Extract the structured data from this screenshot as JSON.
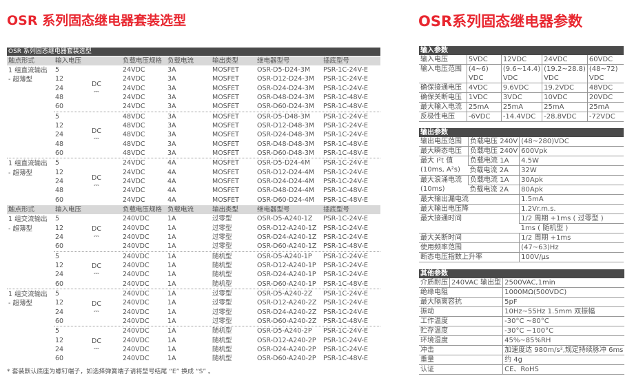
{
  "left": {
    "title": "OSR 系列固态继电器套装选型",
    "table_title": "OSR 系列固态继电器套装选型",
    "headers": [
      "触点形式",
      "输入电压",
      "负载电压规格",
      "负载电流",
      "输出类型",
      "继电器型号",
      "插底型号"
    ],
    "dc_label": "DC",
    "dc_symbol": "⎓",
    "sections": [
      {
        "groups": [
          {
            "label": [
              "1 组直流输出",
              "- 超薄型"
            ],
            "blocks": [
              [
                [
                  "5",
                  "24VDC",
                  "3A",
                  "MOSFET",
                  "OSR-D5-D24-3M",
                  "PSR-1C-24V-E"
                ],
                [
                  "12",
                  "24VDC",
                  "3A",
                  "MOSFET",
                  "OSR-D12-D24-3M",
                  "PSR-1C-24V-E"
                ],
                [
                  "24",
                  "24VDC",
                  "3A",
                  "MOSFET",
                  "OSR-D24-D24-3M",
                  "PSR-1C-24V-E"
                ],
                [
                  "48",
                  "24VDC",
                  "3A",
                  "MOSFET",
                  "OSR-D48-D24-3M",
                  "PSR-1C-48V-E"
                ],
                [
                  "60",
                  "24VDC",
                  "3A",
                  "MOSFET",
                  "OSR-D60-D24-3M",
                  "PSR-1C-48V-E"
                ]
              ],
              [
                [
                  "5",
                  "48VDC",
                  "3A",
                  "MOSFET",
                  "OSR-D5-D48-3M",
                  "PSR-1C-24V-E"
                ],
                [
                  "12",
                  "48VDC",
                  "3A",
                  "MOSFET",
                  "OSR-D12-D48-3M",
                  "PSR-1C-24V-E"
                ],
                [
                  "24",
                  "48VDC",
                  "3A",
                  "MOSFET",
                  "OSR-D24-D48-3M",
                  "PSR-1C-24V-E"
                ],
                [
                  "48",
                  "48VDC",
                  "3A",
                  "MOSFET",
                  "OSR-D48-D48-3M",
                  "PSR-1C-48V-E"
                ],
                [
                  "60",
                  "48VDC",
                  "3A",
                  "MOSFET",
                  "OSR-D60-D48-3M",
                  "PSR-1C-48V-E"
                ]
              ]
            ]
          },
          {
            "label": [
              "1 组直流输出",
              "- 超薄型"
            ],
            "blocks": [
              [
                [
                  "5",
                  "24VDC",
                  "4A",
                  "MOSFET",
                  "OSR-D5-D24-4M",
                  "PSR-1C-24V-E"
                ],
                [
                  "12",
                  "24VDC",
                  "4A",
                  "MOSFET",
                  "OSR-D12-D24-4M",
                  "PSR-1C-24V-E"
                ],
                [
                  "24",
                  "24VDC",
                  "4A",
                  "MOSFET",
                  "OSR-D24-D24-4M",
                  "PSR-1C-24V-E"
                ],
                [
                  "48",
                  "24VDC",
                  "4A",
                  "MOSFET",
                  "OSR-D48-D24-4M",
                  "PSR-1C-48V-E"
                ],
                [
                  "60",
                  "24VDC",
                  "4A",
                  "MOSFET",
                  "OSR-D60-D24-4M",
                  "PSR-1C-48V-E"
                ]
              ]
            ]
          }
        ]
      },
      {
        "groups": [
          {
            "label": [
              "1 组交流输出",
              "- 超薄型"
            ],
            "blocks": [
              [
                [
                  "5",
                  "240VDC",
                  "1A",
                  "过零型",
                  "OSR-D5-A240-1Z",
                  "PSR-1C-24V-E"
                ],
                [
                  "12",
                  "240VDC",
                  "1A",
                  "过零型",
                  "OSR-D12-A240-1Z",
                  "PSR-1C-24V-E"
                ],
                [
                  "24",
                  "240VDC",
                  "1A",
                  "过零型",
                  "OSR-D24-A240-1Z",
                  "PSR-1C-24V-E"
                ],
                [
                  "60",
                  "240VDC",
                  "1A",
                  "过零型",
                  "OSR-D60-A240-1Z",
                  "PSR-1C-48V-E"
                ]
              ],
              [
                [
                  "5",
                  "240VDC",
                  "1A",
                  "随机型",
                  "OSR-D5-A240-1P",
                  "PSR-1C-24V-E"
                ],
                [
                  "12",
                  "240VDC",
                  "1A",
                  "随机型",
                  "OSR-D12-A240-1P",
                  "PSR-1C-24V-E"
                ],
                [
                  "24",
                  "240VDC",
                  "1A",
                  "随机型",
                  "OSR-D24-A240-1P",
                  "PSR-1C-24V-E"
                ],
                [
                  "60",
                  "240VDC",
                  "1A",
                  "随机型",
                  "OSR-D60-A240-1P",
                  "PSR-1C-48V-E"
                ]
              ]
            ]
          },
          {
            "label": [
              "1 组交流输出",
              "- 超薄型"
            ],
            "blocks": [
              [
                [
                  "5",
                  "240VDC",
                  "1A",
                  "过零型",
                  "OSR-D5-A240-2Z",
                  "PSR-1C-24V-E"
                ],
                [
                  "12",
                  "240VDC",
                  "1A",
                  "过零型",
                  "OSR-D12-A240-2Z",
                  "PSR-1C-24V-E"
                ],
                [
                  "24",
                  "240VDC",
                  "1A",
                  "过零型",
                  "OSR-D24-A240-2Z",
                  "PSR-1C-24V-E"
                ],
                [
                  "60",
                  "240VDC",
                  "1A",
                  "过零型",
                  "OSR-D60-A240-2Z",
                  "PSR-1C-48V-E"
                ]
              ],
              [
                [
                  "5",
                  "240VDC",
                  "1A",
                  "随机型",
                  "OSR-D5-A240-2P",
                  "PSR-1C-24V-E"
                ],
                [
                  "12",
                  "240VDC",
                  "1A",
                  "随机型",
                  "OSR-D12-A240-2P",
                  "PSR-1C-24V-E"
                ],
                [
                  "24",
                  "240VDC",
                  "1A",
                  "随机型",
                  "OSR-D24-A240-2P",
                  "PSR-1C-24V-E"
                ],
                [
                  "60",
                  "240VDC",
                  "1A",
                  "随机型",
                  "OSR-D60-A240-2P",
                  "PSR-1C-48V-E"
                ]
              ]
            ]
          }
        ]
      }
    ],
    "footnote": "* 套装默认底座为螺钉端子，如选择弹簧端子请将型号结尾 “E” 换成 “S” 。"
  },
  "right": {
    "title": "OSR系列固态继电器参数",
    "input": {
      "header": "输入参数",
      "rows": [
        [
          "输入电压",
          "5VDC",
          "12VDC",
          "24VDC",
          "60VDC"
        ],
        [
          "输入电压范围",
          "(4~6)\nVDC",
          "(9.6~14.4)\nVDC",
          "(19.2~28.8)\nVDC",
          "(48~72)\nVDC"
        ],
        [
          "确保接通电压",
          "4VDC",
          "9.6VDC",
          "19.2VDC",
          "48VDC"
        ],
        [
          "确保关断电压",
          "1VDC",
          "3VDC",
          "10VDC",
          "20VDC"
        ],
        [
          "最大输入电流",
          "25mA",
          "25mA",
          "25mA",
          "25mA"
        ],
        [
          "反极性电压",
          "-6VDC",
          "-14.4VDC",
          "-28.8VDC",
          "-72VDC"
        ]
      ]
    },
    "output": {
      "header": "输出参数",
      "rows": [
        {
          "label": [
            "输出电压范围"
          ],
          "sub": [
            [
              "负载电压 240V",
              "(48~280)VDC"
            ]
          ]
        },
        {
          "label": [
            "最大瞬态电压"
          ],
          "sub": [
            [
              "负载电压 240V",
              "600Vpk"
            ]
          ]
        },
        {
          "label": [
            "最大 I²t 值",
            "(10ms, A²s)"
          ],
          "sub": [
            [
              "负载电流 1A",
              "4.5W"
            ],
            [
              "负载电流 2A",
              "32W"
            ]
          ]
        },
        {
          "label": [
            "最大浪涌电流",
            "(10ms)"
          ],
          "sub": [
            [
              "负载电流 1A",
              "30Apk"
            ],
            [
              "负载电流 2A",
              "80Apk"
            ]
          ]
        },
        {
          "label": [
            "最大输出漏电流"
          ],
          "sub": [
            [
              null,
              "1.5mA"
            ]
          ]
        },
        {
          "label": [
            "最大输出电压降"
          ],
          "sub": [
            [
              null,
              "1.2Vr.m.s."
            ]
          ]
        },
        {
          "label": [
            "最大接通时间"
          ],
          "sub": [
            [
              null,
              "1/2 周期 +1ms ( 过零型 )"
            ],
            [
              null,
              "1ms ( 随机型 )"
            ]
          ]
        },
        {
          "label": [
            "最大关断时间"
          ],
          "sub": [
            [
              null,
              "1/2 周期 +1ms"
            ]
          ]
        },
        {
          "label": [
            "使用频率范围"
          ],
          "sub": [
            [
              null,
              "(47~63)Hz"
            ]
          ]
        },
        {
          "label": [
            "断态电压指数上升率"
          ],
          "sub": [
            [
              null,
              "100V/μs"
            ]
          ]
        }
      ]
    },
    "other": {
      "header": "其他参数",
      "rows": [
        {
          "label": [
            "介质耐压"
          ],
          "sub": [
            [
              "240VAC 输出型",
              "2500VAC,1min"
            ]
          ]
        },
        {
          "label": [
            "绝缘电阻"
          ],
          "sub": [
            [
              null,
              "1000MΩ(500VDC)"
            ]
          ]
        },
        {
          "label": [
            "最大隔离容抗"
          ],
          "sub": [
            [
              null,
              "5pF"
            ]
          ]
        },
        {
          "label": [
            "振动"
          ],
          "sub": [
            [
              null,
              "10Hz~55Hz 1.5mm 双振幅"
            ]
          ]
        },
        {
          "label": [
            "工作温度"
          ],
          "sub": [
            [
              null,
              "-30°C ~80°C"
            ]
          ]
        },
        {
          "label": [
            "贮存温度"
          ],
          "sub": [
            [
              null,
              "-30°C ~100°C"
            ]
          ]
        },
        {
          "label": [
            "环境湿度"
          ],
          "sub": [
            [
              null,
              "45%~85%RH"
            ]
          ]
        },
        {
          "label": [
            "冲击"
          ],
          "sub": [
            [
              null,
              "加速度达 980m/s²,规定持续脉冲 6ms"
            ]
          ]
        },
        {
          "label": [
            "重量"
          ],
          "sub": [
            [
              null,
              "约 4g"
            ]
          ]
        },
        {
          "label": [
            "认证"
          ],
          "sub": [
            [
              null,
              "CE、RoHS"
            ]
          ]
        }
      ]
    }
  },
  "colors": {
    "title_red": "#e8262f",
    "bar_dark": "#4a4a4a",
    "header_gray": "#d8d8d8"
  }
}
